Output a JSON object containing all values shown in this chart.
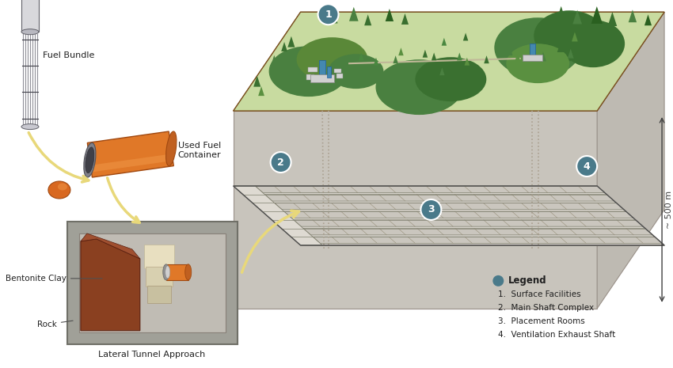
{
  "background_color": "#ffffff",
  "legend_title": "Legend",
  "legend_items": [
    "Surface Facilities",
    "Main Shaft Complex",
    "Placement Rooms",
    "Ventilation Exhaust Shaft"
  ],
  "legend_dot_color": "#4a7a8a",
  "labels": {
    "fuel_bundle": "Fuel Bundle",
    "used_fuel_container": "Used Fuel\nContainer",
    "bentonite_clay": "Bentonite Clay",
    "rock": "Rock",
    "lateral_tunnel": "Lateral Tunnel Approach",
    "depth": "~ 500 m"
  },
  "number_circle_color": "#4a7a8a",
  "number_text_color": "#ffffff",
  "arrow_color": "#e8d87a",
  "surface_green": "#c8dba0",
  "surface_green_dark": "#5a8a48",
  "ground_brown": "#9a7040",
  "underground_top": "#d8d4cc",
  "underground_left": "#c4c0b8",
  "underground_right": "#ccc8c0",
  "placement_floor": "#dedad4",
  "room_fill": "#ccc8c4",
  "room_stroke": "#909090",
  "shaft_color": "#aaa090",
  "tree_dark": "#3a7030",
  "tree_mid": "#4a8840",
  "tree_light": "#5a9850",
  "building_blue": "#4488b0",
  "inset_rock": "#9a9890",
  "inset_interior": "#b8b4ac",
  "bentonite_brown": "#9a5028",
  "fuel_container_orange": "#e07828",
  "pellet_orange": "#d86820"
}
